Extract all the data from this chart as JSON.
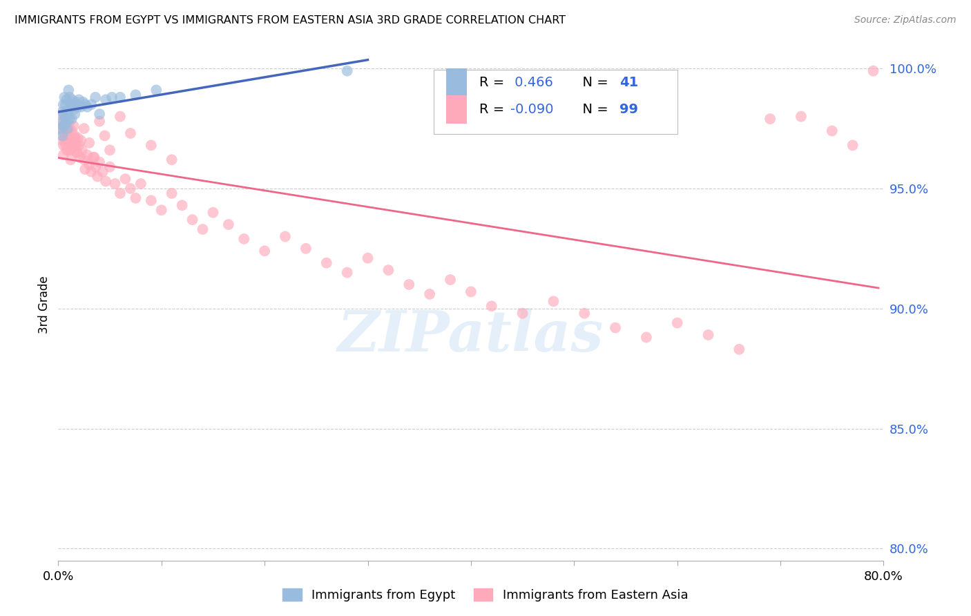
{
  "title": "IMMIGRANTS FROM EGYPT VS IMMIGRANTS FROM EASTERN ASIA 3RD GRADE CORRELATION CHART",
  "source": "Source: ZipAtlas.com",
  "ylabel": "3rd Grade",
  "xlim": [
    0.0,
    0.8
  ],
  "ylim": [
    0.795,
    1.008
  ],
  "yticks": [
    0.8,
    0.85,
    0.9,
    0.95,
    1.0
  ],
  "ytick_labels": [
    "80.0%",
    "85.0%",
    "90.0%",
    "95.0%",
    "100.0%"
  ],
  "xtick_positions": [
    0.0,
    0.1,
    0.2,
    0.3,
    0.4,
    0.5,
    0.6,
    0.7,
    0.8
  ],
  "xtick_labels": [
    "0.0%",
    "",
    "",
    "",
    "",
    "",
    "",
    "",
    "80.0%"
  ],
  "blue_color": "#99BBDD",
  "blue_edge_color": "#99BBDD",
  "pink_color": "#FFAABB",
  "pink_edge_color": "#FFAABB",
  "blue_line_color": "#4466BB",
  "pink_line_color": "#EE6688",
  "blue_R": "0.466",
  "blue_N": "41",
  "pink_R": "-0.090",
  "pink_N": "99",
  "R_label_color": "#000000",
  "N_label_color": "#2255CC",
  "legend_label_blue": "Immigrants from Egypt",
  "legend_label_pink": "Immigrants from Eastern Asia",
  "watermark_text": "ZIPatlas",
  "watermark_color": "#AACCEE",
  "watermark_alpha": 0.3,
  "grid_color": "#CCCCCC",
  "grid_style": "--",
  "scatter_size": 130,
  "scatter_alpha": 0.65,
  "blue_x": [
    0.002,
    0.003,
    0.004,
    0.004,
    0.005,
    0.005,
    0.006,
    0.006,
    0.007,
    0.007,
    0.008,
    0.008,
    0.009,
    0.009,
    0.01,
    0.01,
    0.011,
    0.011,
    0.012,
    0.013,
    0.013,
    0.014,
    0.015,
    0.016,
    0.017,
    0.018,
    0.019,
    0.02,
    0.022,
    0.024,
    0.026,
    0.028,
    0.032,
    0.036,
    0.04,
    0.046,
    0.052,
    0.06,
    0.075,
    0.095,
    0.28
  ],
  "blue_y": [
    0.975,
    0.978,
    0.972,
    0.982,
    0.976,
    0.985,
    0.98,
    0.988,
    0.977,
    0.985,
    0.979,
    0.987,
    0.981,
    0.975,
    0.983,
    0.991,
    0.979,
    0.988,
    0.985,
    0.979,
    0.987,
    0.984,
    0.983,
    0.981,
    0.986,
    0.985,
    0.984,
    0.987,
    0.984,
    0.986,
    0.985,
    0.984,
    0.985,
    0.988,
    0.981,
    0.987,
    0.988,
    0.988,
    0.989,
    0.991,
    0.999
  ],
  "pink_x": [
    0.002,
    0.003,
    0.004,
    0.004,
    0.005,
    0.005,
    0.006,
    0.006,
    0.007,
    0.007,
    0.008,
    0.008,
    0.009,
    0.01,
    0.01,
    0.011,
    0.012,
    0.012,
    0.013,
    0.014,
    0.015,
    0.015,
    0.016,
    0.017,
    0.018,
    0.019,
    0.02,
    0.021,
    0.022,
    0.023,
    0.025,
    0.026,
    0.028,
    0.03,
    0.032,
    0.034,
    0.036,
    0.038,
    0.04,
    0.043,
    0.046,
    0.05,
    0.055,
    0.06,
    0.065,
    0.07,
    0.075,
    0.08,
    0.09,
    0.1,
    0.11,
    0.12,
    0.13,
    0.14,
    0.15,
    0.165,
    0.18,
    0.2,
    0.22,
    0.24,
    0.26,
    0.28,
    0.3,
    0.32,
    0.34,
    0.36,
    0.38,
    0.4,
    0.42,
    0.45,
    0.48,
    0.51,
    0.54,
    0.57,
    0.6,
    0.63,
    0.66,
    0.69,
    0.72,
    0.75,
    0.77,
    0.005,
    0.008,
    0.01,
    0.012,
    0.014,
    0.016,
    0.018,
    0.025,
    0.03,
    0.035,
    0.04,
    0.045,
    0.05,
    0.06,
    0.07,
    0.09,
    0.11,
    0.79
  ],
  "pink_y": [
    0.977,
    0.974,
    0.97,
    0.981,
    0.976,
    0.968,
    0.98,
    0.971,
    0.975,
    0.968,
    0.974,
    0.966,
    0.972,
    0.977,
    0.969,
    0.975,
    0.971,
    0.966,
    0.974,
    0.969,
    0.976,
    0.967,
    0.972,
    0.968,
    0.965,
    0.971,
    0.968,
    0.963,
    0.97,
    0.966,
    0.962,
    0.958,
    0.964,
    0.96,
    0.957,
    0.963,
    0.959,
    0.955,
    0.961,
    0.957,
    0.953,
    0.959,
    0.952,
    0.948,
    0.954,
    0.95,
    0.946,
    0.952,
    0.945,
    0.941,
    0.948,
    0.943,
    0.937,
    0.933,
    0.94,
    0.935,
    0.929,
    0.924,
    0.93,
    0.925,
    0.919,
    0.915,
    0.921,
    0.916,
    0.91,
    0.906,
    0.912,
    0.907,
    0.901,
    0.898,
    0.903,
    0.898,
    0.892,
    0.888,
    0.894,
    0.889,
    0.883,
    0.979,
    0.98,
    0.974,
    0.968,
    0.964,
    0.97,
    0.966,
    0.962,
    0.968,
    0.971,
    0.965,
    0.975,
    0.969,
    0.963,
    0.978,
    0.972,
    0.966,
    0.98,
    0.973,
    0.968,
    0.962,
    0.999
  ],
  "blue_line_x0": 0.0,
  "blue_line_x1": 0.3,
  "pink_line_x0": 0.0,
  "pink_line_x1": 0.795
}
